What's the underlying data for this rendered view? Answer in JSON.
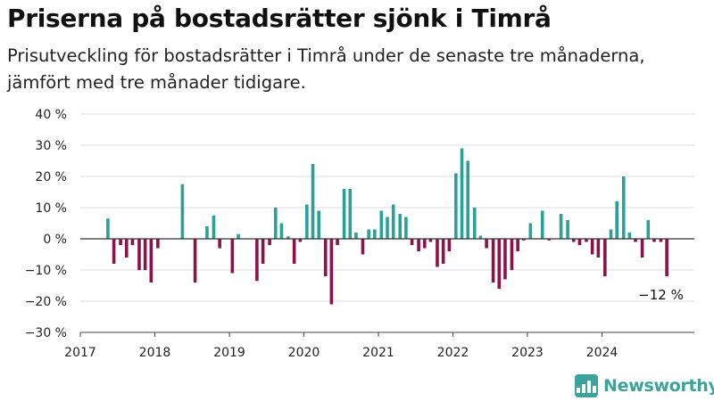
{
  "title": "Priserna på bostadsrätter sjönk i Timrå",
  "subtitle": "Prisutveckling för bostadsrätter i Timrå under de senaste tre månaderna, jämfört med tre månader tidigare.",
  "brand": "Newsworthy",
  "colors": {
    "positive": "#2aa198",
    "negative": "#8c1248",
    "grid": "#dddddd",
    "zero_line": "#333333",
    "brand": "#3aa39a"
  },
  "chart_data": {
    "type": "bar",
    "title": "Priserna på bostadsrätter sjönk i Timrå",
    "subtitle": "Prisutveckling för bostadsrätter i Timrå under de senaste tre månaderna, jämfört med tre månader tidigare.",
    "xlabel": "",
    "ylabel": "",
    "unit": "%",
    "ylim": [
      -30,
      40
    ],
    "xlim": [
      2017.0,
      2025.0
    ],
    "y_ticks": [
      40,
      30,
      20,
      10,
      0,
      -10,
      -20,
      -30
    ],
    "y_tick_labels": [
      "40 %",
      "30 %",
      "20 %",
      "10 %",
      "0 %",
      "−10 %",
      "−20 %",
      "−30 %"
    ],
    "x_ticks": [
      "2017",
      "2018",
      "2019",
      "2020",
      "2021",
      "2022",
      "2023",
      "2024"
    ],
    "grid": true,
    "annotation": {
      "label": "−12 %",
      "x": 2024.79,
      "y": -12
    },
    "series": [
      {
        "x": [
          2017.37,
          2017.45,
          2017.54,
          2017.62,
          2017.7,
          2017.79,
          2017.87,
          2017.95,
          2018.04,
          2018.37,
          2018.54,
          2018.7,
          2018.79,
          2018.87,
          2019.04,
          2019.12,
          2019.37,
          2019.45,
          2019.54,
          2019.62,
          2019.7,
          2019.79,
          2019.87,
          2019.95,
          2020.04,
          2020.12,
          2020.2,
          2020.29,
          2020.37,
          2020.45,
          2020.54,
          2020.62,
          2020.7,
          2020.79,
          2020.87,
          2020.95,
          2021.04,
          2021.12,
          2021.2,
          2021.29,
          2021.37,
          2021.45,
          2021.54,
          2021.62,
          2021.7,
          2021.79,
          2021.87,
          2021.95,
          2022.04,
          2022.12,
          2022.2,
          2022.29,
          2022.37,
          2022.45,
          2022.54,
          2022.62,
          2022.7,
          2022.79,
          2022.87,
          2022.95,
          2023.04,
          2023.2,
          2023.29,
          2023.45,
          2023.54,
          2023.62,
          2023.7,
          2023.79,
          2023.87,
          2023.95,
          2024.04,
          2024.12,
          2024.2,
          2024.29,
          2024.37,
          2024.45,
          2024.54,
          2024.62,
          2024.7,
          2024.79,
          2024.87
        ],
        "values": [
          6.5,
          -8,
          -2,
          -6,
          -2,
          -10,
          -10,
          -14,
          -3,
          17.5,
          -14,
          4,
          7.5,
          -3,
          -11,
          1.5,
          -13.5,
          -8,
          -2,
          10,
          5,
          0.8,
          -8,
          -1,
          11,
          24,
          9,
          -12,
          -21,
          -2,
          16,
          16,
          2,
          -5,
          3,
          3,
          9,
          7,
          11,
          8,
          7,
          -2,
          -4,
          -3,
          -1,
          -9,
          -8,
          -4,
          21,
          29,
          25,
          10,
          1,
          -3,
          -14,
          -16,
          -13,
          -10,
          -4,
          -0.5,
          5,
          9,
          -0.5,
          8,
          6,
          -1,
          -2,
          -1,
          -5,
          -6,
          -12,
          3,
          12,
          20,
          2,
          -1,
          -6,
          6,
          -1,
          -1,
          -12
        ]
      }
    ]
  }
}
